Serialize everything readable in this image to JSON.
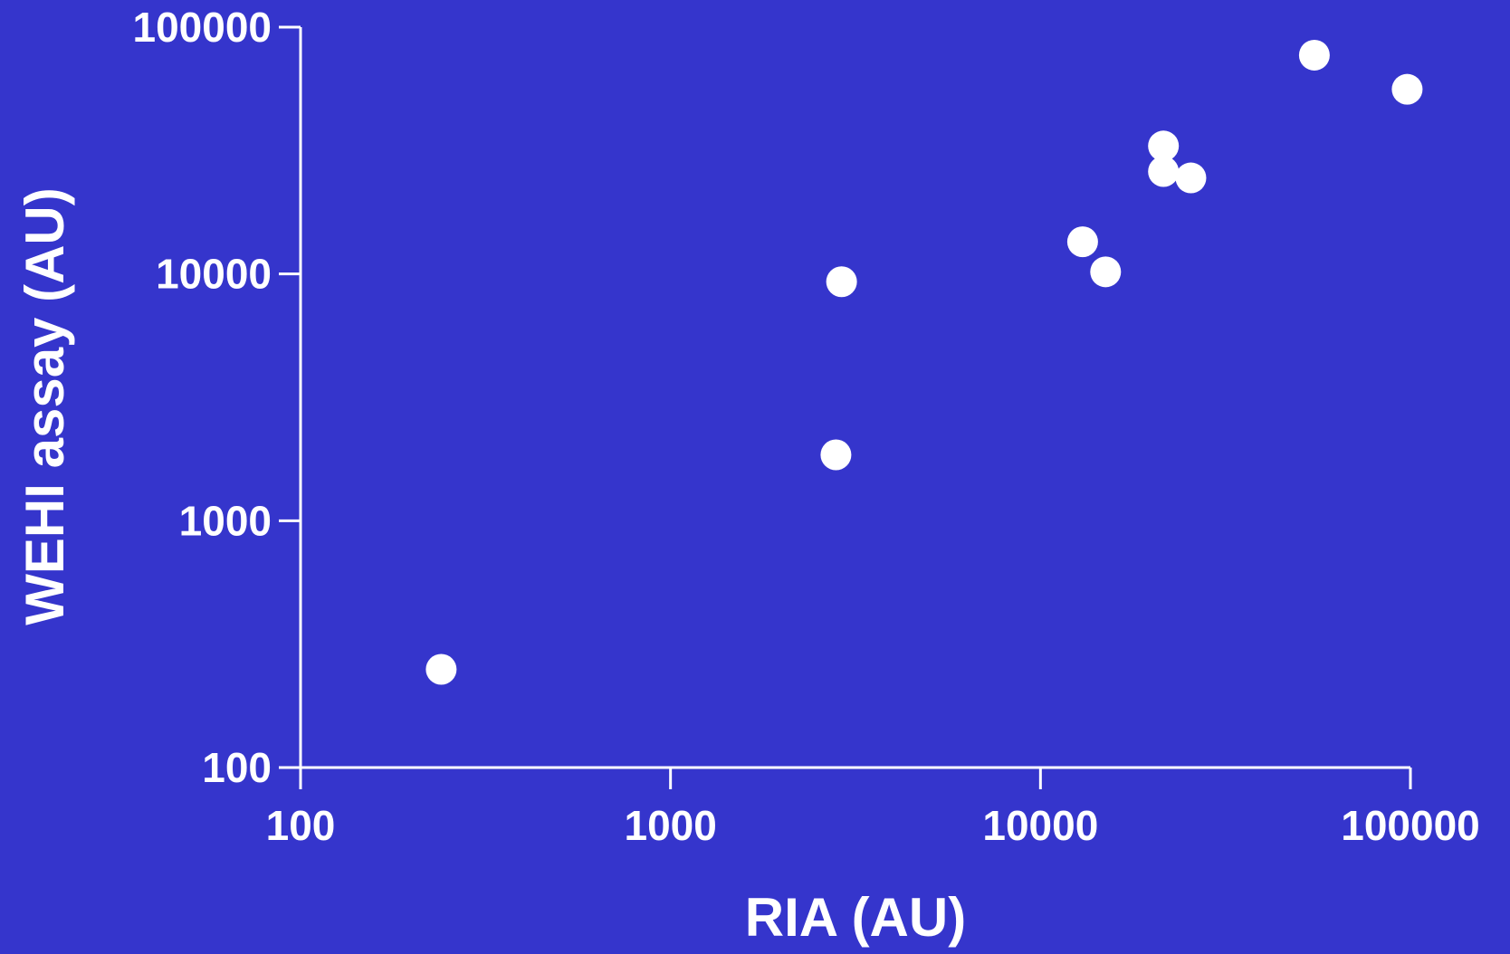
{
  "chart_data": {
    "type": "scatter",
    "xlabel": "RIA (AU)",
    "ylabel": "WEHI assay (AU)",
    "xscale": "log",
    "yscale": "log",
    "xlim": [
      100,
      100000
    ],
    "ylim": [
      100,
      100000
    ],
    "xticks": [
      "100",
      "1000",
      "10000",
      "100000"
    ],
    "yticks": [
      "100",
      "1000",
      "10000",
      "100000"
    ],
    "grid": false,
    "legend": "none",
    "colors": {
      "background": "#3535cc",
      "foreground": "#ffffff"
    },
    "points": [
      {
        "x": 240,
        "y": 250
      },
      {
        "x": 2800,
        "y": 1850
      },
      {
        "x": 2900,
        "y": 9300
      },
      {
        "x": 13000,
        "y": 13500
      },
      {
        "x": 15000,
        "y": 10200
      },
      {
        "x": 21500,
        "y": 33000
      },
      {
        "x": 21500,
        "y": 26000
      },
      {
        "x": 25500,
        "y": 24500
      },
      {
        "x": 55000,
        "y": 77000
      },
      {
        "x": 98000,
        "y": 56000
      }
    ]
  }
}
